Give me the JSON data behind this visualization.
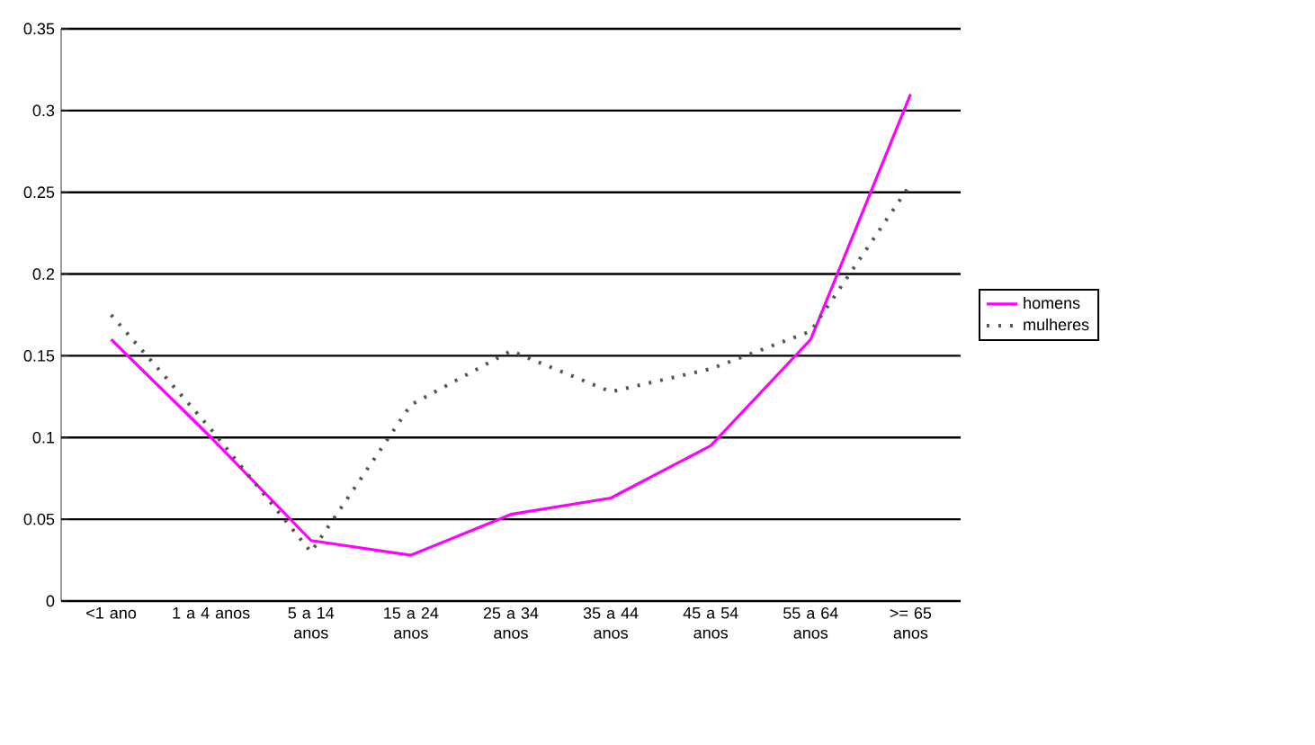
{
  "chart_data": {
    "type": "line",
    "categories": [
      "<1 ano",
      "1 a 4 anos",
      "5 a 14 anos",
      "15 a 24 anos",
      "25 a 34 anos",
      "35 a 44 anos",
      "45 a 54 anos",
      "55 a 64 anos",
      ">= 65 anos"
    ],
    "series": [
      {
        "name": "homens",
        "color": "#ff00ff",
        "line_style": "solid",
        "values": [
          0.16,
          0.1,
          0.037,
          0.028,
          0.053,
          0.063,
          0.095,
          0.16,
          0.31
        ]
      },
      {
        "name": "mulheres",
        "color": "#555555",
        "line_style": "dotted",
        "values": [
          0.175,
          0.105,
          0.03,
          0.12,
          0.153,
          0.128,
          0.142,
          0.165,
          0.255
        ]
      }
    ],
    "ylim": [
      0,
      0.35
    ],
    "yticks": [
      0,
      0.05,
      0.1,
      0.15,
      0.2,
      0.25,
      0.3,
      0.35
    ],
    "grid": "y",
    "legend": "right",
    "marker": "none"
  }
}
